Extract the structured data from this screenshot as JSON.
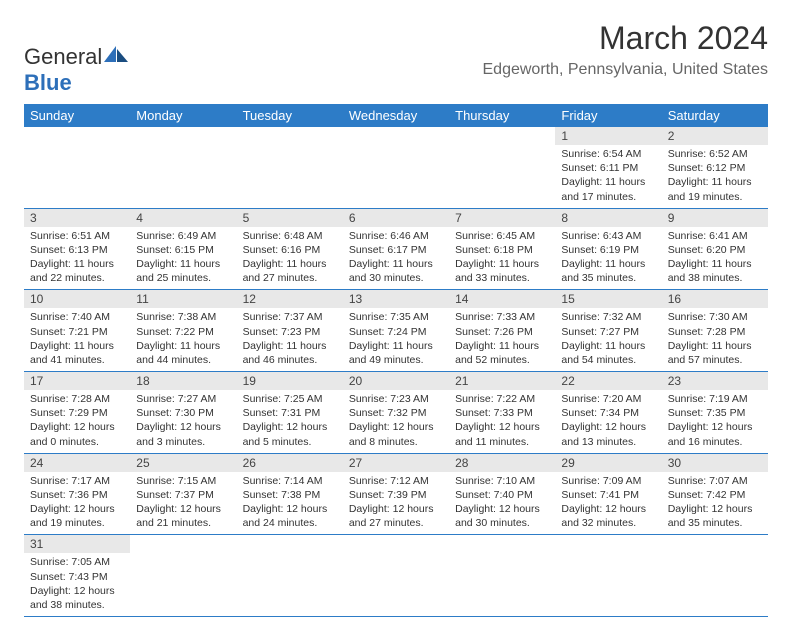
{
  "brand": {
    "name1": "General",
    "name2": "Blue"
  },
  "title": "March 2024",
  "location": "Edgeworth, Pennsylvania, United States",
  "colors": {
    "header_bg": "#2d7cc7",
    "header_text": "#ffffff",
    "daynum_bg": "#e8e8e8",
    "border": "#2d7cc7",
    "brand_blue": "#2d6fb9",
    "text": "#333333",
    "location_text": "#666666"
  },
  "weekdays": [
    "Sunday",
    "Monday",
    "Tuesday",
    "Wednesday",
    "Thursday",
    "Friday",
    "Saturday"
  ],
  "weeks": [
    [
      null,
      null,
      null,
      null,
      null,
      {
        "n": "1",
        "sr": "Sunrise: 6:54 AM",
        "ss": "Sunset: 6:11 PM",
        "dl": "Daylight: 11 hours and 17 minutes."
      },
      {
        "n": "2",
        "sr": "Sunrise: 6:52 AM",
        "ss": "Sunset: 6:12 PM",
        "dl": "Daylight: 11 hours and 19 minutes."
      }
    ],
    [
      {
        "n": "3",
        "sr": "Sunrise: 6:51 AM",
        "ss": "Sunset: 6:13 PM",
        "dl": "Daylight: 11 hours and 22 minutes."
      },
      {
        "n": "4",
        "sr": "Sunrise: 6:49 AM",
        "ss": "Sunset: 6:15 PM",
        "dl": "Daylight: 11 hours and 25 minutes."
      },
      {
        "n": "5",
        "sr": "Sunrise: 6:48 AM",
        "ss": "Sunset: 6:16 PM",
        "dl": "Daylight: 11 hours and 27 minutes."
      },
      {
        "n": "6",
        "sr": "Sunrise: 6:46 AM",
        "ss": "Sunset: 6:17 PM",
        "dl": "Daylight: 11 hours and 30 minutes."
      },
      {
        "n": "7",
        "sr": "Sunrise: 6:45 AM",
        "ss": "Sunset: 6:18 PM",
        "dl": "Daylight: 11 hours and 33 minutes."
      },
      {
        "n": "8",
        "sr": "Sunrise: 6:43 AM",
        "ss": "Sunset: 6:19 PM",
        "dl": "Daylight: 11 hours and 35 minutes."
      },
      {
        "n": "9",
        "sr": "Sunrise: 6:41 AM",
        "ss": "Sunset: 6:20 PM",
        "dl": "Daylight: 11 hours and 38 minutes."
      }
    ],
    [
      {
        "n": "10",
        "sr": "Sunrise: 7:40 AM",
        "ss": "Sunset: 7:21 PM",
        "dl": "Daylight: 11 hours and 41 minutes."
      },
      {
        "n": "11",
        "sr": "Sunrise: 7:38 AM",
        "ss": "Sunset: 7:22 PM",
        "dl": "Daylight: 11 hours and 44 minutes."
      },
      {
        "n": "12",
        "sr": "Sunrise: 7:37 AM",
        "ss": "Sunset: 7:23 PM",
        "dl": "Daylight: 11 hours and 46 minutes."
      },
      {
        "n": "13",
        "sr": "Sunrise: 7:35 AM",
        "ss": "Sunset: 7:24 PM",
        "dl": "Daylight: 11 hours and 49 minutes."
      },
      {
        "n": "14",
        "sr": "Sunrise: 7:33 AM",
        "ss": "Sunset: 7:26 PM",
        "dl": "Daylight: 11 hours and 52 minutes."
      },
      {
        "n": "15",
        "sr": "Sunrise: 7:32 AM",
        "ss": "Sunset: 7:27 PM",
        "dl": "Daylight: 11 hours and 54 minutes."
      },
      {
        "n": "16",
        "sr": "Sunrise: 7:30 AM",
        "ss": "Sunset: 7:28 PM",
        "dl": "Daylight: 11 hours and 57 minutes."
      }
    ],
    [
      {
        "n": "17",
        "sr": "Sunrise: 7:28 AM",
        "ss": "Sunset: 7:29 PM",
        "dl": "Daylight: 12 hours and 0 minutes."
      },
      {
        "n": "18",
        "sr": "Sunrise: 7:27 AM",
        "ss": "Sunset: 7:30 PM",
        "dl": "Daylight: 12 hours and 3 minutes."
      },
      {
        "n": "19",
        "sr": "Sunrise: 7:25 AM",
        "ss": "Sunset: 7:31 PM",
        "dl": "Daylight: 12 hours and 5 minutes."
      },
      {
        "n": "20",
        "sr": "Sunrise: 7:23 AM",
        "ss": "Sunset: 7:32 PM",
        "dl": "Daylight: 12 hours and 8 minutes."
      },
      {
        "n": "21",
        "sr": "Sunrise: 7:22 AM",
        "ss": "Sunset: 7:33 PM",
        "dl": "Daylight: 12 hours and 11 minutes."
      },
      {
        "n": "22",
        "sr": "Sunrise: 7:20 AM",
        "ss": "Sunset: 7:34 PM",
        "dl": "Daylight: 12 hours and 13 minutes."
      },
      {
        "n": "23",
        "sr": "Sunrise: 7:19 AM",
        "ss": "Sunset: 7:35 PM",
        "dl": "Daylight: 12 hours and 16 minutes."
      }
    ],
    [
      {
        "n": "24",
        "sr": "Sunrise: 7:17 AM",
        "ss": "Sunset: 7:36 PM",
        "dl": "Daylight: 12 hours and 19 minutes."
      },
      {
        "n": "25",
        "sr": "Sunrise: 7:15 AM",
        "ss": "Sunset: 7:37 PM",
        "dl": "Daylight: 12 hours and 21 minutes."
      },
      {
        "n": "26",
        "sr": "Sunrise: 7:14 AM",
        "ss": "Sunset: 7:38 PM",
        "dl": "Daylight: 12 hours and 24 minutes."
      },
      {
        "n": "27",
        "sr": "Sunrise: 7:12 AM",
        "ss": "Sunset: 7:39 PM",
        "dl": "Daylight: 12 hours and 27 minutes."
      },
      {
        "n": "28",
        "sr": "Sunrise: 7:10 AM",
        "ss": "Sunset: 7:40 PM",
        "dl": "Daylight: 12 hours and 30 minutes."
      },
      {
        "n": "29",
        "sr": "Sunrise: 7:09 AM",
        "ss": "Sunset: 7:41 PM",
        "dl": "Daylight: 12 hours and 32 minutes."
      },
      {
        "n": "30",
        "sr": "Sunrise: 7:07 AM",
        "ss": "Sunset: 7:42 PM",
        "dl": "Daylight: 12 hours and 35 minutes."
      }
    ],
    [
      {
        "n": "31",
        "sr": "Sunrise: 7:05 AM",
        "ss": "Sunset: 7:43 PM",
        "dl": "Daylight: 12 hours and 38 minutes."
      },
      null,
      null,
      null,
      null,
      null,
      null
    ]
  ]
}
